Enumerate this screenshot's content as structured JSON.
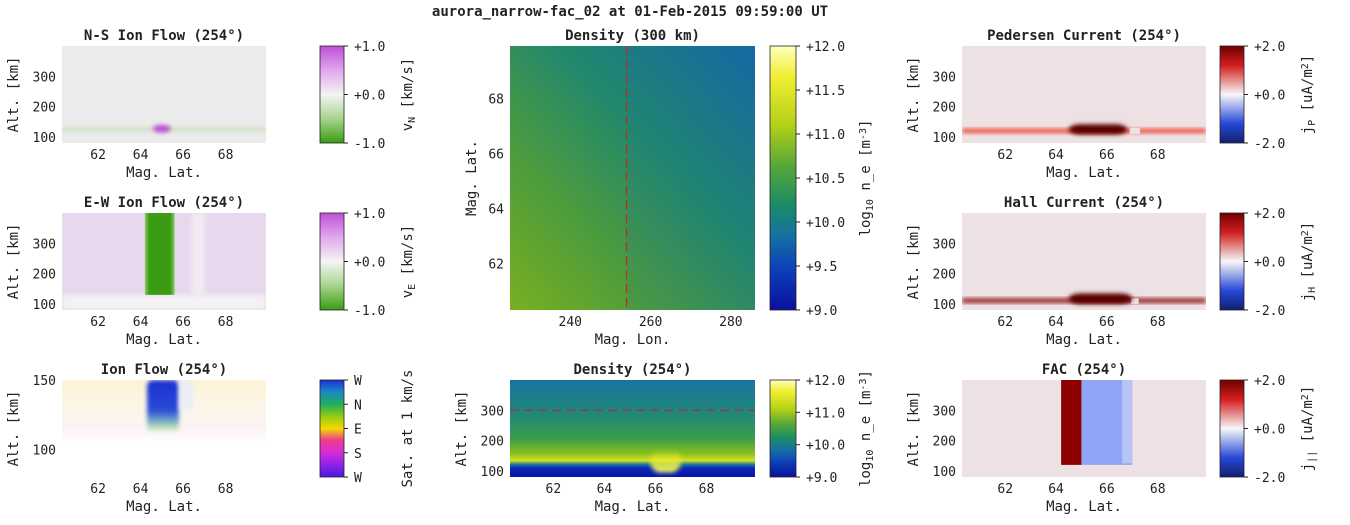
{
  "figure": {
    "title": "aurora_narrow-fac_02 at 01-Feb-2015 09:59:00 UT"
  },
  "colors": {
    "background": "#ffffff",
    "grey_field": "#ebebeb",
    "pink_field": "#ede1e4",
    "lavender_field": "#e7d8ee",
    "green_flow": "#3a9c12",
    "purple_flow": "#c04fd8",
    "dark_red": "#8c0000",
    "dashed_line": "#d02020"
  },
  "chart_data": [
    {
      "id": "ns-ion-flow",
      "type": "heatmap",
      "title": "N-S Ion Flow (254°)",
      "xlabel": "Mag. Lat.",
      "ylabel": "Alt. [km]",
      "x_range": [
        60.3,
        69.9
      ],
      "y_range": [
        80,
        400
      ],
      "xticks": [
        "62",
        "64",
        "66",
        "68"
      ],
      "yticks": [
        "100",
        "200",
        "300"
      ],
      "colorbar": {
        "label": "v_N [km/s]",
        "ticks": [
          "+1.0",
          "+0.0",
          "-1.0"
        ],
        "range": [
          -1.0,
          1.0
        ],
        "colormap": "green-white-purple"
      },
      "features": "faint green layer near 125 km across all latitudes; purple blob (~+0.8 km/s) centered at 65 deg, 125 km"
    },
    {
      "id": "ew-ion-flow",
      "type": "heatmap",
      "title": "E-W Ion Flow (254°)",
      "xlabel": "Mag. Lat.",
      "ylabel": "Alt. [km]",
      "x_range": [
        60.3,
        69.9
      ],
      "y_range": [
        80,
        400
      ],
      "xticks": [
        "62",
        "64",
        "66",
        "68"
      ],
      "yticks": [
        "100",
        "200",
        "300"
      ],
      "colorbar": {
        "label": "v_E [km/s]",
        "ticks": [
          "+1.0",
          "+0.0",
          "-1.0"
        ],
        "range": [
          -1.0,
          1.0
        ],
        "colormap": "green-white-purple"
      },
      "features": "weak positive (lavender) background above 130 km; strong negative (green) column from 64.2 to 65.6 deg"
    },
    {
      "id": "ion-flow",
      "type": "heatmap",
      "title": "Ion Flow (254°)",
      "xlabel": "Mag. Lat.",
      "ylabel": "Alt. [km]",
      "x_range": [
        60.3,
        69.9
      ],
      "y_range": [
        80,
        150
      ],
      "xticks": [
        "62",
        "64",
        "66",
        "68"
      ],
      "yticks": [
        "100",
        "150"
      ],
      "colorbar": {
        "label": "Sat. at 1 km/s",
        "ticks": [
          "W",
          "N",
          "E",
          "S",
          "W"
        ],
        "colormap": "hue-wheel"
      },
      "features": "blue (westward) column at 64.3-65.8 deg above 120 km; pale yellow tint in upper region"
    },
    {
      "id": "density-300km",
      "type": "heatmap",
      "title": "Density (300 km)",
      "xlabel": "Mag. Lon.",
      "ylabel": "Mag. Lat.",
      "x_range": [
        225,
        286
      ],
      "y_range": [
        60.3,
        69.9
      ],
      "xticks": [
        "240",
        "260",
        "280"
      ],
      "yticks": [
        "62",
        "64",
        "66",
        "68"
      ],
      "reference_line_x": 254,
      "colorbar": {
        "label": "log10 n_e [m^-3]",
        "ticks": [
          "+12.0",
          "+11.5",
          "+11.0",
          "+10.5",
          "+10.0",
          "+9.5",
          "+9.0"
        ],
        "range": [
          9.0,
          12.0
        ],
        "colormap": "blue-green-yellow"
      },
      "features": "density ~10.7 at low lon/low lat decreasing to ~10.1 at high lon/high lat"
    },
    {
      "id": "density-254",
      "type": "heatmap",
      "title": "Density (254°)",
      "xlabel": "Mag. Lat.",
      "ylabel": "Alt. [km]",
      "x_range": [
        60.3,
        69.9
      ],
      "y_range": [
        80,
        400
      ],
      "xticks": [
        "62",
        "64",
        "66",
        "68"
      ],
      "yticks": [
        "100",
        "200",
        "300"
      ],
      "reference_line_y": 300,
      "colorbar": {
        "label": "log10 n_e [m^-3]",
        "ticks": [
          "+12.0",
          "+11.0",
          "+10.0",
          "+9.0"
        ],
        "range": [
          9.0,
          12.0
        ],
        "colormap": "blue-green-yellow"
      },
      "features": "E-layer peak ~11.3 near 105 km; yellow enhancement (~11.9) at 66-67 deg below 160 km; ~10.4 at top"
    },
    {
      "id": "pedersen-current",
      "type": "heatmap",
      "title": "Pedersen Current (254°)",
      "xlabel": "Mag. Lat.",
      "ylabel": "Alt. [km]",
      "x_range": [
        60.3,
        69.9
      ],
      "y_range": [
        80,
        400
      ],
      "xticks": [
        "62",
        "64",
        "66",
        "68"
      ],
      "yticks": [
        "100",
        "200",
        "300"
      ],
      "colorbar": {
        "label": "j_P [uA/m^2]",
        "ticks": [
          "+2.0",
          "+0.0",
          "-2.0"
        ],
        "range": [
          -2.0,
          2.0
        ],
        "colormap": "blue-white-red"
      },
      "features": "red band near 120 km; saturated blob at 64.5-66.8 deg; gap near 67 deg"
    },
    {
      "id": "hall-current",
      "type": "heatmap",
      "title": "Hall Current (254°)",
      "xlabel": "Mag. Lat.",
      "ylabel": "Alt. [km]",
      "x_range": [
        60.3,
        69.9
      ],
      "y_range": [
        80,
        400
      ],
      "xticks": [
        "62",
        "64",
        "66",
        "68"
      ],
      "yticks": [
        "100",
        "200",
        "300"
      ],
      "colorbar": {
        "label": "j_H [uA/m^2]",
        "ticks": [
          "+2.0",
          "+0.0",
          "-2.0"
        ],
        "range": [
          -2.0,
          2.0
        ],
        "colormap": "blue-white-red"
      },
      "features": "dark red band near 110 km; saturated blob at 64.5-67 deg"
    },
    {
      "id": "fac",
      "type": "heatmap",
      "title": "FAC (254°)",
      "xlabel": "Mag. Lat.",
      "ylabel": "Alt. [km]",
      "x_range": [
        60.3,
        69.9
      ],
      "y_range": [
        80,
        400
      ],
      "xticks": [
        "62",
        "64",
        "66",
        "68"
      ],
      "yticks": [
        "100",
        "200",
        "300"
      ],
      "colorbar": {
        "label": "j_|| [uA/m^2]",
        "ticks": [
          "+2.0",
          "+0.0",
          "-2.0"
        ],
        "range": [
          -2.0,
          2.0
        ],
        "colormap": "blue-white-red"
      },
      "features": "upward (~+2.0) sheet at 64.2-65.0 deg; downward (~-0.8) sheet at 65.0-67.0 deg, above 120 km"
    }
  ]
}
